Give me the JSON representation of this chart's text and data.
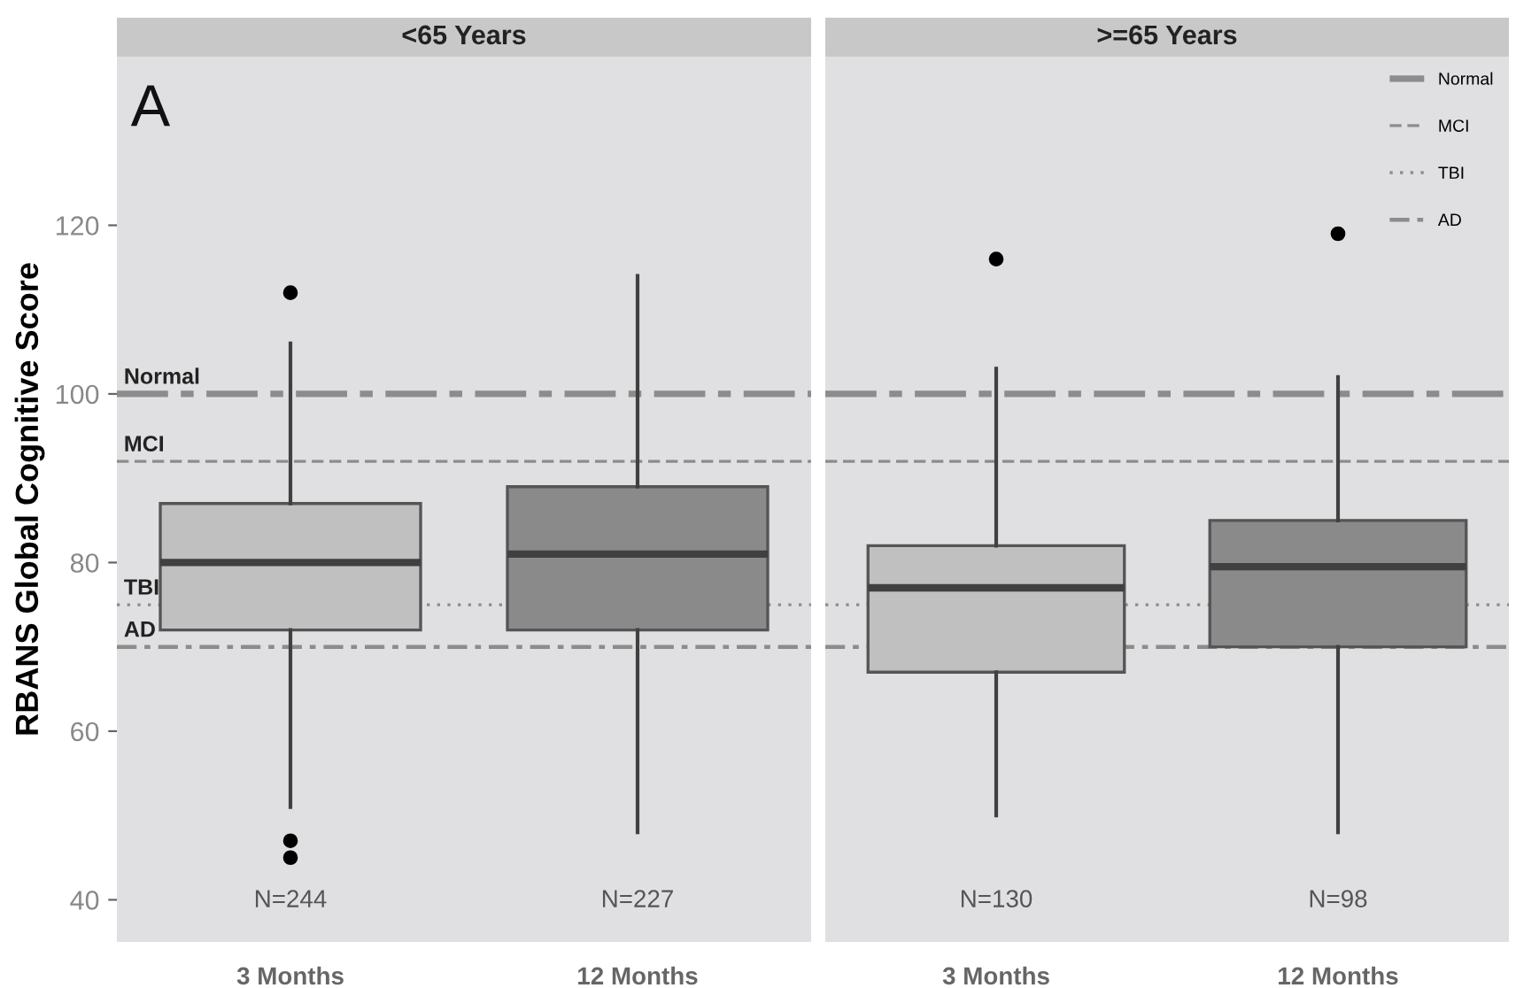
{
  "chart_data": [
    {
      "type": "box",
      "title": "<65 Years",
      "ylabel": "RBANS Global Cognitive Score",
      "categories": [
        "3 Months",
        "12 Months"
      ],
      "boxes": [
        {
          "low": 51,
          "q1": 72,
          "median": 80,
          "q3": 87,
          "high": 106,
          "outliers": [
            112,
            47,
            45
          ]
        },
        {
          "low": 48,
          "q1": 72,
          "median": 81,
          "q3": 89,
          "high": 114
        }
      ],
      "colors": [
        "#c0c0c0",
        "#8a8a8a"
      ],
      "ylim": [
        35,
        140
      ],
      "yticks": [
        40,
        60,
        80,
        100,
        120
      ],
      "ref_lines": [
        {
          "axis": "y",
          "value": 100,
          "label": "Normal",
          "color": "#8c8c8c",
          "line_style": "longdashdot"
        },
        {
          "axis": "y",
          "value": 92,
          "label": "MCI",
          "color": "#8c8c8c",
          "line_style": "dashed"
        },
        {
          "axis": "y",
          "value": 75,
          "label": "TBI",
          "color": "#8c8c8c",
          "line_style": "dotted"
        },
        {
          "axis": "y",
          "value": 70,
          "label": "AD",
          "color": "#8c8c8c",
          "line_style": "dashdot"
        }
      ],
      "annotations": [
        "A",
        "N=244",
        "N=227"
      ]
    },
    {
      "type": "box",
      "title": ">=65 Years",
      "categories": [
        "3 Months",
        "12 Months"
      ],
      "boxes": [
        {
          "low": 50,
          "q1": 67,
          "median": 77,
          "q3": 82,
          "high": 103,
          "outliers": [
            116
          ]
        },
        {
          "low": 48,
          "q1": 70,
          "median": 79.5,
          "q3": 85,
          "high": 102,
          "outliers": [
            119
          ]
        }
      ],
      "colors": [
        "#c0c0c0",
        "#8a8a8a"
      ],
      "ylim": [
        35,
        140
      ],
      "tick_labels": "x",
      "legend": "top right",
      "ref_lines": [
        {
          "axis": "y",
          "value": 100,
          "label": "Normal",
          "color": "#8c8c8c",
          "line_style": "longdashdot"
        },
        {
          "axis": "y",
          "value": 92,
          "label": "MCI",
          "color": "#8c8c8c",
          "line_style": "dashed"
        },
        {
          "axis": "y",
          "value": 75,
          "label": "TBI",
          "color": "#8c8c8c",
          "line_style": "dotted"
        },
        {
          "axis": "y",
          "value": 70,
          "label": "AD",
          "color": "#8c8c8c",
          "line_style": "dashdot"
        }
      ],
      "annotations": [
        "N=130",
        "N=98"
      ]
    }
  ]
}
